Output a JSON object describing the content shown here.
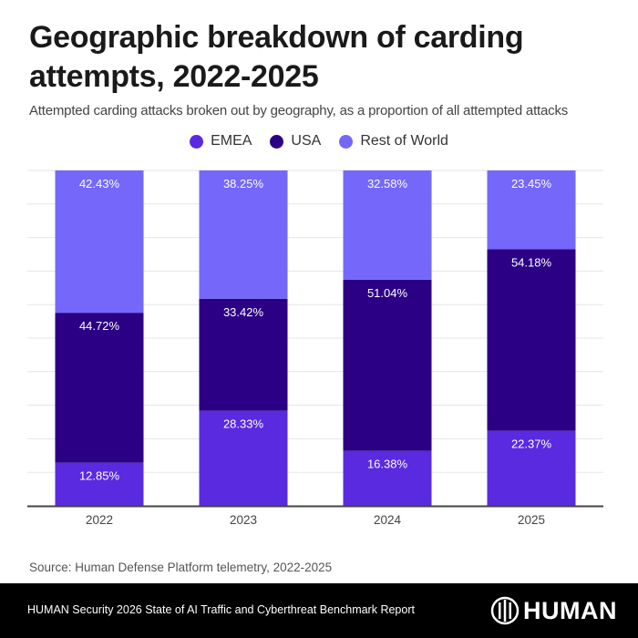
{
  "header": {
    "title": "Geographic breakdown of carding attempts, 2022-2025",
    "subtitle": "Attempted carding attacks broken out by geography, as a proportion of all attempted attacks"
  },
  "chart_data": {
    "type": "bar",
    "stacked": true,
    "title": "Geographic breakdown of carding attempts, 2022-2025",
    "subtitle": "Attempted carding attacks broken out by geography, as a proportion of all attempted attacks",
    "xlabel": "",
    "ylabel": "",
    "ylim": [
      0,
      100
    ],
    "grid": true,
    "legend_position": "top-center",
    "categories": [
      "2022",
      "2023",
      "2024",
      "2025"
    ],
    "series": [
      {
        "name": "EMEA",
        "color": "#5a2ae0",
        "values": [
          12.85,
          28.33,
          16.38,
          22.37
        ],
        "labels": [
          "12.85%",
          "28.33%",
          "16.38%",
          "22.37%"
        ]
      },
      {
        "name": "USA",
        "color": "#2c0085",
        "values": [
          44.72,
          33.42,
          51.04,
          54.18
        ],
        "labels": [
          "44.72%",
          "33.42%",
          "51.04%",
          "54.18%"
        ]
      },
      {
        "name": "Rest of World",
        "color": "#7567fa",
        "values": [
          42.43,
          38.25,
          32.58,
          23.45
        ],
        "labels": [
          "42.43%",
          "38.25%",
          "32.58%",
          "23.45%"
        ]
      }
    ]
  },
  "source": "Source: Human Defense Platform telemetry, 2022-2025",
  "footer": {
    "report": "HUMAN Security 2026 State of AI Traffic and Cyberthreat Benchmark Report",
    "logo_text": "HUMAN"
  }
}
